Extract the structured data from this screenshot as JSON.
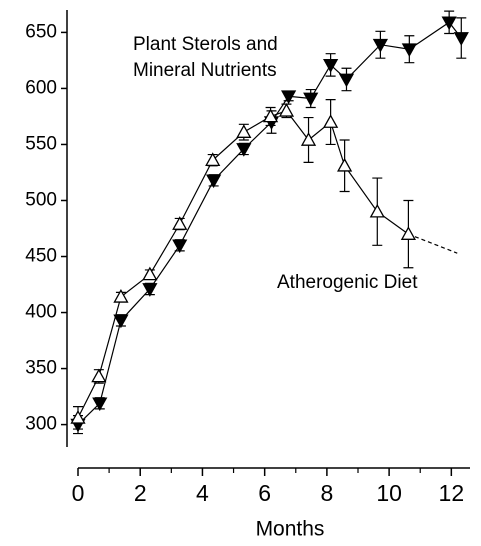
{
  "chart_data": {
    "type": "line",
    "x_label": "Months",
    "xlim": [
      0,
      12.6
    ],
    "xticks": [
      0,
      2,
      4,
      6,
      8,
      10,
      12
    ],
    "xminor": [
      1,
      3,
      5,
      7,
      9,
      11
    ],
    "ylim": [
      280,
      670
    ],
    "yticks": [
      300,
      350,
      400,
      450,
      500,
      550,
      600,
      650
    ],
    "series": [
      {
        "name": "Plant Sterols and Mineral Nutrients",
        "marker": "filled-down",
        "color": "#000000",
        "x": [
          0,
          0.7,
          1.38,
          2.31,
          3.27,
          4.36,
          5.33,
          6.22,
          6.77,
          7.48,
          8.12,
          8.63,
          9.72,
          10.65,
          11.93,
          12.32
        ],
        "values": [
          300,
          319,
          393,
          421,
          460,
          518,
          546,
          570,
          593,
          591,
          621,
          608,
          639,
          635,
          659,
          645
        ],
        "errors": [
          8,
          5,
          5,
          5,
          5,
          5,
          5,
          10,
          4,
          8,
          10,
          10,
          12,
          12,
          10,
          18
        ]
      },
      {
        "name": "Atherogenic Diet",
        "marker": "open-up",
        "color": "#000000",
        "x": [
          0,
          0.67,
          1.38,
          2.31,
          3.27,
          4.33,
          5.33,
          6.19,
          6.7,
          7.41,
          8.12,
          8.57,
          9.62,
          10.62
        ],
        "values": [
          306,
          343,
          414,
          434,
          479,
          536,
          561,
          575,
          580,
          554,
          570,
          531,
          490,
          470
        ],
        "errors": [
          10,
          6,
          4,
          4,
          5,
          5,
          7,
          8,
          6,
          20,
          20,
          23,
          30,
          30
        ],
        "extension": {
          "x": [
            10.62,
            12.19
          ],
          "values": [
            470,
            453
          ]
        }
      }
    ]
  }
}
